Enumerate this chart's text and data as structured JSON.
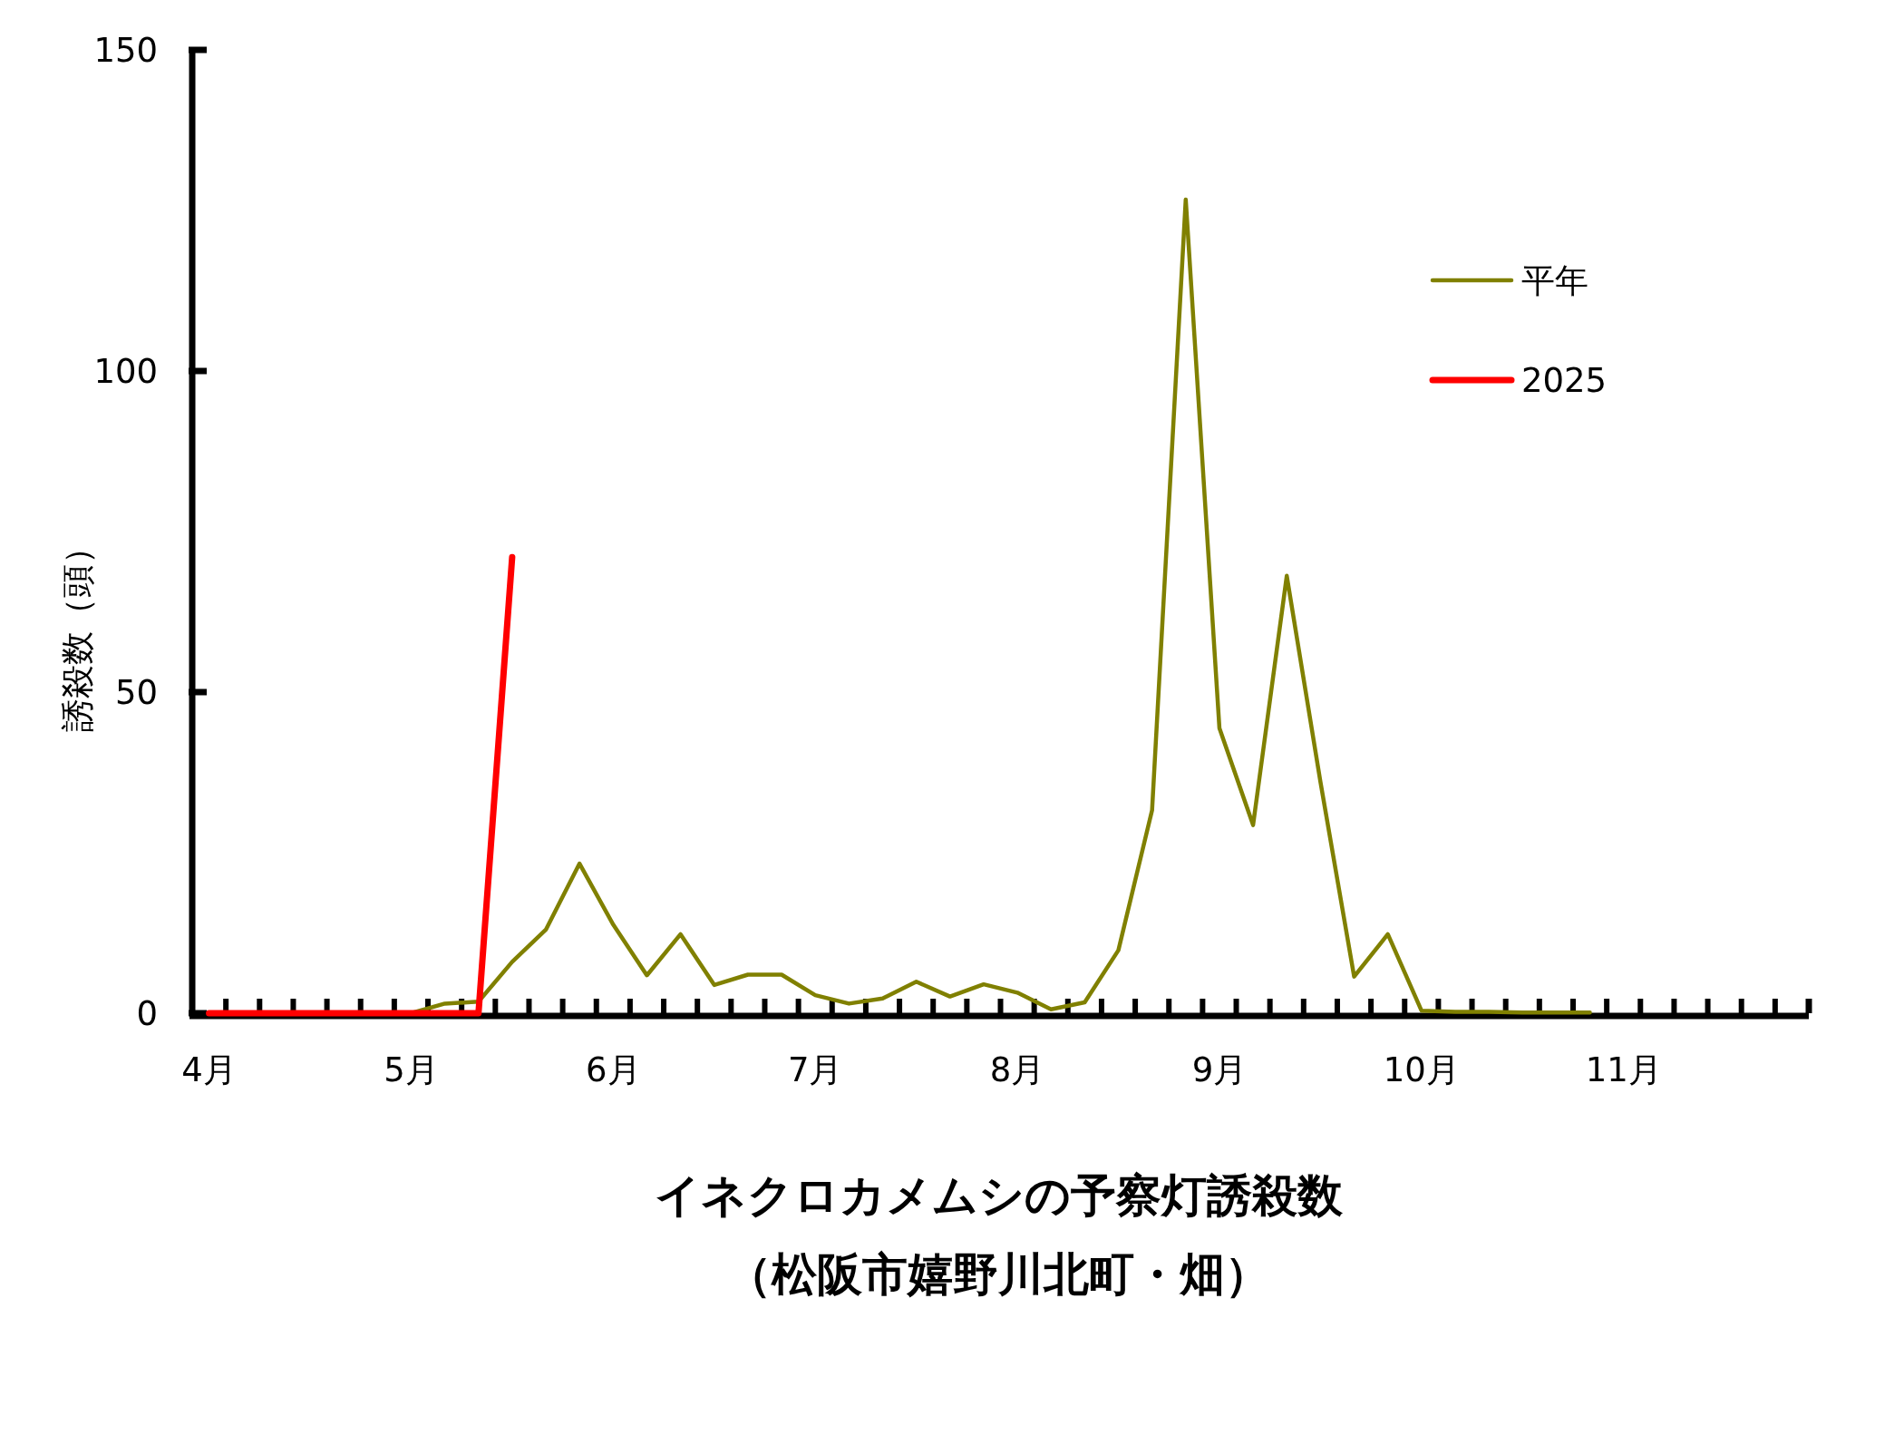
{
  "chart_data": {
    "type": "line",
    "title": "イネクロカメムシの予察灯誘殺数",
    "subtitle": "（松阪市嬉野川北町・畑）",
    "ylabel": "誘殺数（頭）",
    "categories": [
      "4月",
      null,
      null,
      null,
      null,
      null,
      "5月",
      null,
      null,
      null,
      null,
      null,
      "6月",
      null,
      null,
      null,
      null,
      null,
      "7月",
      null,
      null,
      null,
      null,
      null,
      "8月",
      null,
      null,
      null,
      null,
      null,
      "9月",
      null,
      null,
      null,
      null,
      null,
      "10月",
      null,
      null,
      null,
      null,
      null,
      "11月",
      null,
      null,
      null,
      null,
      null
    ],
    "ylim": [
      0,
      150
    ],
    "yticks": [
      0,
      50,
      100,
      150
    ],
    "grid": false,
    "legend": "top right",
    "line_style": "solid",
    "marker": "none",
    "series": [
      {
        "name": "平年",
        "color": "#808000",
        "values": [
          null,
          null,
          null,
          null,
          null,
          null,
          0,
          1.5,
          1.8,
          8,
          13,
          23.3,
          13.8,
          5.9,
          12.3,
          4.4,
          6,
          6,
          2.8,
          1.5,
          2.3,
          4.9,
          2.6,
          4.5,
          3.2,
          0.6,
          1.7,
          9.8,
          31.6,
          126.7,
          44.4,
          29.3,
          68.1,
          36,
          5.7,
          12.3,
          0.4,
          0.2,
          0.2,
          0.1,
          0.1,
          0.1,
          null,
          null,
          null,
          null,
          null,
          null
        ]
      },
      {
        "name": "2025",
        "color": "#ff0000",
        "values": [
          0,
          0,
          0,
          0,
          0,
          0,
          0,
          0,
          0,
          71,
          null,
          null,
          null,
          null,
          null,
          null,
          null,
          null,
          null,
          null,
          null,
          null,
          null,
          null,
          null,
          null,
          null,
          null,
          null,
          null,
          null,
          null,
          null,
          null,
          null,
          null,
          null,
          null,
          null,
          null,
          null,
          null,
          null,
          null,
          null,
          null,
          null,
          null
        ]
      }
    ]
  }
}
